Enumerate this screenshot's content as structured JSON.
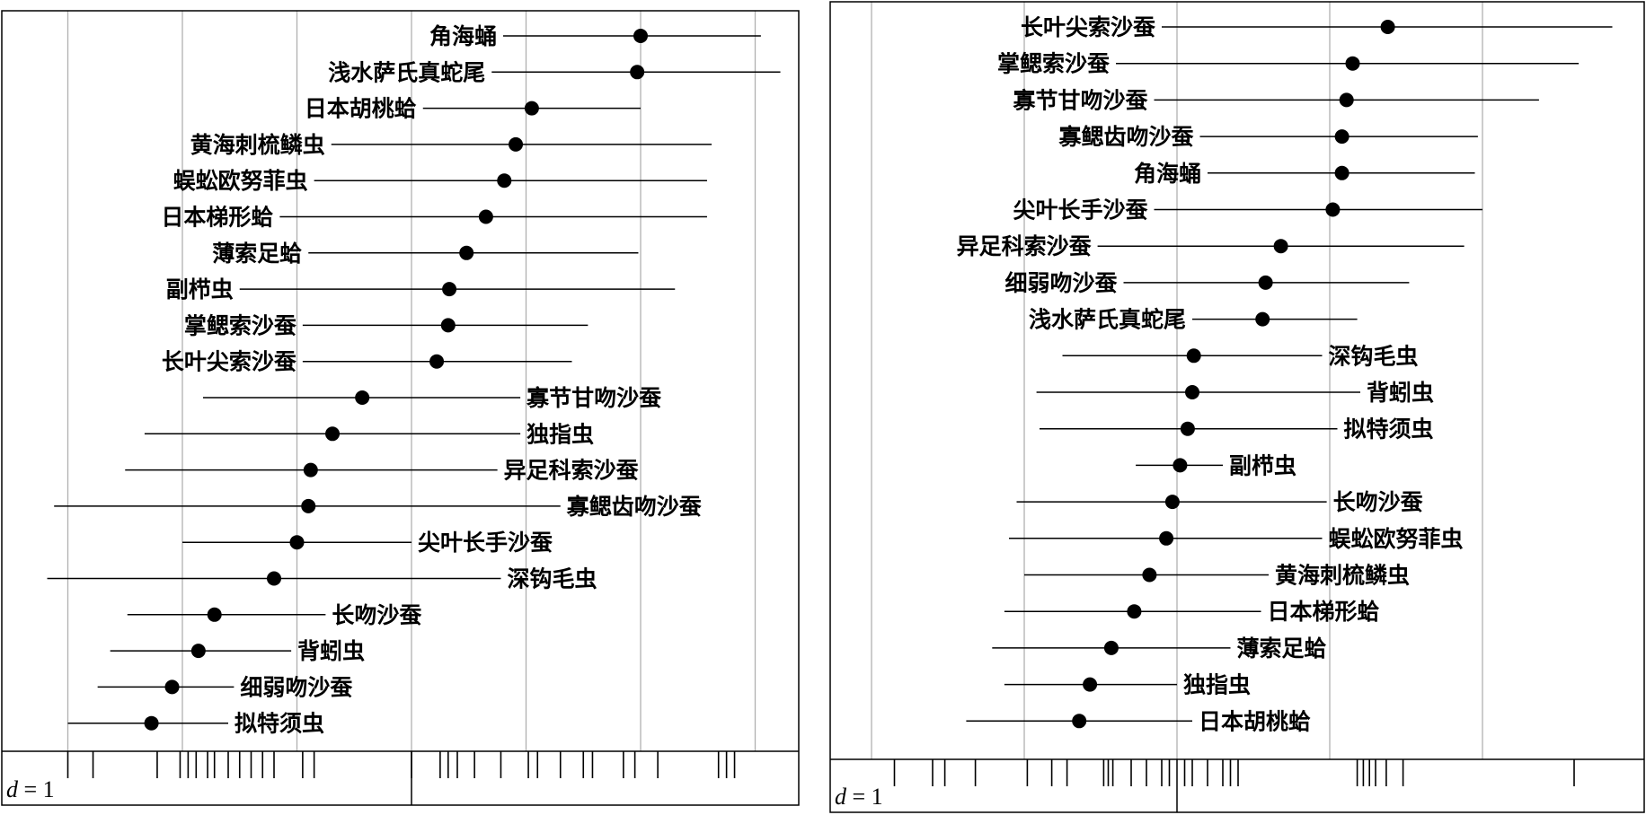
{
  "chart_data": [
    {
      "type": "scatter",
      "panel": "left",
      "scale_label": "d = 1",
      "scale_italic_part": "d",
      "scale_rest": " = 1",
      "grid_x": [
        -3,
        -2,
        -1,
        0,
        1,
        2,
        3
      ],
      "xlim": [
        -3.6,
        3.4
      ],
      "rows": [
        {
          "name": "角海蛹",
          "value": 2.0,
          "low": 0.8,
          "high": 3.05,
          "label_side": "left"
        },
        {
          "name": "浅水萨氏真蛇尾",
          "value": 1.97,
          "low": 0.7,
          "high": 3.22,
          "label_side": "left"
        },
        {
          "name": "日本胡桃蛤",
          "value": 1.05,
          "low": 0.1,
          "high": 2.0,
          "label_side": "left"
        },
        {
          "name": "黄海刺梳鳞虫",
          "value": 0.91,
          "low": -0.7,
          "high": 2.62,
          "label_side": "left"
        },
        {
          "name": "蜈蚣欧努菲虫",
          "value": 0.81,
          "low": -0.85,
          "high": 2.58,
          "label_side": "left"
        },
        {
          "name": "日本梯形蛤",
          "value": 0.65,
          "low": -1.15,
          "high": 2.58,
          "label_side": "left"
        },
        {
          "name": "薄索足蛤",
          "value": 0.48,
          "low": -0.9,
          "high": 1.98,
          "label_side": "left"
        },
        {
          "name": "副栉虫",
          "value": 0.33,
          "low": -1.5,
          "high": 2.3,
          "label_side": "left"
        },
        {
          "name": "掌鳃索沙蚕",
          "value": 0.32,
          "low": -0.95,
          "high": 1.54,
          "label_side": "left"
        },
        {
          "name": "长叶尖索沙蚕",
          "value": 0.22,
          "low": -0.95,
          "high": 1.4,
          "label_side": "left"
        },
        {
          "name": "寡节甘吻沙蚕",
          "value": -0.43,
          "low": -1.82,
          "high": 0.95,
          "label_side": "right"
        },
        {
          "name": "独指虫",
          "value": -0.69,
          "low": -2.33,
          "high": 0.95,
          "label_side": "right"
        },
        {
          "name": "异足科索沙蚕",
          "value": -0.88,
          "low": -2.5,
          "high": 0.75,
          "label_side": "right"
        },
        {
          "name": "寡鳃齿吻沙蚕",
          "value": -0.9,
          "low": -3.12,
          "high": 1.3,
          "label_side": "right"
        },
        {
          "name": "尖叶长手沙蚕",
          "value": -1.0,
          "low": -2.0,
          "high": 0.0,
          "label_side": "right"
        },
        {
          "name": "深钩毛虫",
          "value": -1.2,
          "low": -3.18,
          "high": 0.78,
          "label_side": "right"
        },
        {
          "name": "长吻沙蚕",
          "value": -1.72,
          "low": -2.48,
          "high": -0.75,
          "label_side": "right"
        },
        {
          "name": "背蚓虫",
          "value": -1.86,
          "low": -2.63,
          "high": -1.05,
          "label_side": "right"
        },
        {
          "name": "细弱吻沙蚕",
          "value": -2.09,
          "low": -2.74,
          "high": -1.55,
          "label_side": "right"
        },
        {
          "name": "拟特须虫",
          "value": -2.27,
          "low": -3.0,
          "high": -1.6,
          "label_side": "right"
        }
      ],
      "rug": [
        -3.0,
        -2.78,
        -2.22,
        -2.02,
        -1.95,
        -1.88,
        -1.78,
        -1.72,
        -1.6,
        -1.5,
        -1.4,
        -1.3,
        -1.2,
        -0.95,
        -0.85,
        0.0,
        0.25,
        0.32,
        0.4,
        0.55,
        0.78,
        1.02,
        1.1,
        1.3,
        1.5,
        1.58,
        1.85,
        1.95,
        2.15,
        2.68,
        2.75,
        2.82
      ],
      "rug_bold": [
        -1.95,
        2.15
      ]
    },
    {
      "type": "scatter",
      "panel": "right",
      "scale_label": "d = 1",
      "scale_italic_part": "d",
      "scale_rest": " = 1",
      "grid_x": [
        -2,
        -1,
        0,
        1,
        2
      ],
      "xlim": [
        -3.15,
        3.05
      ],
      "rows": [
        {
          "name": "长叶尖索沙蚕",
          "value": 1.38,
          "low": -0.1,
          "high": 2.85,
          "label_side": "left"
        },
        {
          "name": "掌鳃索沙蚕",
          "value": 1.15,
          "low": -0.4,
          "high": 2.63,
          "label_side": "left"
        },
        {
          "name": "寡节甘吻沙蚕",
          "value": 1.11,
          "low": -0.15,
          "high": 2.37,
          "label_side": "left"
        },
        {
          "name": "寡鳃齿吻沙蚕",
          "value": 1.08,
          "low": 0.15,
          "high": 1.97,
          "label_side": "left"
        },
        {
          "name": "角海蛹",
          "value": 1.08,
          "low": 0.2,
          "high": 1.95,
          "label_side": "left"
        },
        {
          "name": "尖叶长手沙蚕",
          "value": 1.02,
          "low": -0.15,
          "high": 2.0,
          "label_side": "left"
        },
        {
          "name": "异足科索沙蚕",
          "value": 0.68,
          "low": -0.52,
          "high": 1.88,
          "label_side": "left"
        },
        {
          "name": "细弱吻沙蚕",
          "value": 0.58,
          "low": -0.35,
          "high": 1.52,
          "label_side": "left"
        },
        {
          "name": "浅水萨氏真蛇尾",
          "value": 0.56,
          "low": 0.1,
          "high": 1.18,
          "label_side": "left"
        },
        {
          "name": "深钩毛虫",
          "value": 0.11,
          "low": -0.75,
          "high": 0.95,
          "label_side": "right"
        },
        {
          "name": "背蚓虫",
          "value": 0.1,
          "low": -0.92,
          "high": 1.2,
          "label_side": "right"
        },
        {
          "name": "拟特须虫",
          "value": 0.07,
          "low": -0.9,
          "high": 1.05,
          "label_side": "right"
        },
        {
          "name": "副栉虫",
          "value": 0.02,
          "low": -0.27,
          "high": 0.3,
          "label_side": "right"
        },
        {
          "name": "长吻沙蚕",
          "value": -0.03,
          "low": -1.05,
          "high": 0.98,
          "label_side": "right"
        },
        {
          "name": "蜈蚣欧努菲虫",
          "value": -0.07,
          "low": -1.1,
          "high": 0.95,
          "label_side": "right"
        },
        {
          "name": "黄海刺梳鳞虫",
          "value": -0.18,
          "low": -1.0,
          "high": 0.6,
          "label_side": "right"
        },
        {
          "name": "日本梯形蛤",
          "value": -0.28,
          "low": -1.13,
          "high": 0.55,
          "label_side": "right"
        },
        {
          "name": "薄索足蛤",
          "value": -0.43,
          "low": -1.21,
          "high": 0.35,
          "label_side": "right"
        },
        {
          "name": "独指虫",
          "value": -0.57,
          "low": -1.13,
          "high": 0.0,
          "label_side": "right"
        },
        {
          "name": "日本胡桃蛤",
          "value": -0.64,
          "low": -1.38,
          "high": 0.1,
          "label_side": "right"
        }
      ],
      "rug": [
        -1.85,
        -1.6,
        -1.52,
        -1.32,
        -0.98,
        -0.82,
        -0.72,
        -0.48,
        -0.45,
        -0.42,
        -0.3,
        -0.2,
        -0.1,
        -0.05,
        0.05,
        0.1,
        0.2,
        0.3,
        0.35,
        0.4,
        1.18,
        1.22,
        1.26,
        1.3,
        1.37,
        1.48,
        2.6
      ],
      "rug_bold": [
        -0.45,
        0.05
      ]
    }
  ]
}
